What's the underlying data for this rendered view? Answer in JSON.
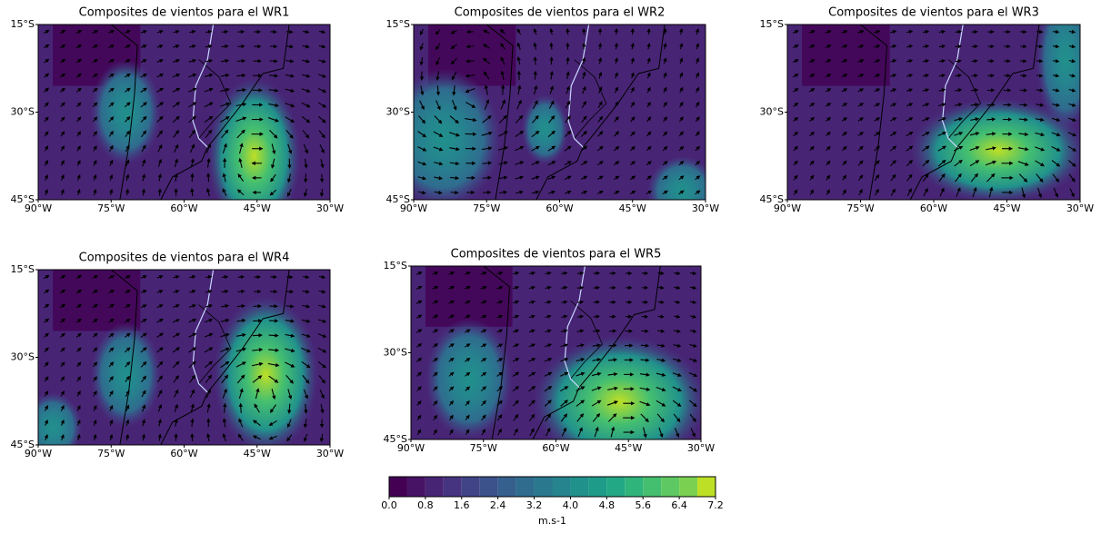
{
  "axes": {
    "x_ticks": [
      "90°W",
      "75°W",
      "60°W",
      "45°W",
      "30°W"
    ],
    "y_ticks": [
      "15°S",
      "30°S",
      "45°S"
    ]
  },
  "panels": [
    {
      "title": "Composites de vientos para el WR1"
    },
    {
      "title": "Composites de vientos para el WR2"
    },
    {
      "title": "Composites de vientos para el WR3"
    },
    {
      "title": "Composites de vientos para el WR4"
    },
    {
      "title": "Composites de vientos para el WR5"
    }
  ],
  "colorbar": {
    "boundaries": [
      0,
      0.4,
      0.8,
      1.2,
      1.6,
      2.0,
      2.4,
      2.8,
      3.2,
      3.6,
      4.0,
      4.4,
      4.8,
      5.2,
      5.6,
      6.0,
      6.4,
      6.8,
      7.2
    ],
    "colors": [
      "#440154",
      "#471365",
      "#482475",
      "#463480",
      "#414487",
      "#3b528b",
      "#355f8d",
      "#2f6c8e",
      "#2a788e",
      "#25848e",
      "#21918c",
      "#1e9c89",
      "#22a884",
      "#2fb47c",
      "#44bf70",
      "#5ec962",
      "#7ad151",
      "#bddf26",
      "#fde725"
    ],
    "ticks": [
      {
        "value": 0,
        "label": "0.0"
      },
      {
        "value": 0.8,
        "label": "0.8"
      },
      {
        "value": 1.6,
        "label": "1.6"
      },
      {
        "value": 2.4,
        "label": "2.4"
      },
      {
        "value": 3.2,
        "label": "3.2"
      },
      {
        "value": 4.0,
        "label": "4.0"
      },
      {
        "value": 4.8,
        "label": "4.8"
      },
      {
        "value": 5.6,
        "label": "5.6"
      },
      {
        "value": 6.4,
        "label": "6.4"
      },
      {
        "value": 7.2,
        "label": "7.2"
      }
    ],
    "label": "m.s-1"
  }
}
